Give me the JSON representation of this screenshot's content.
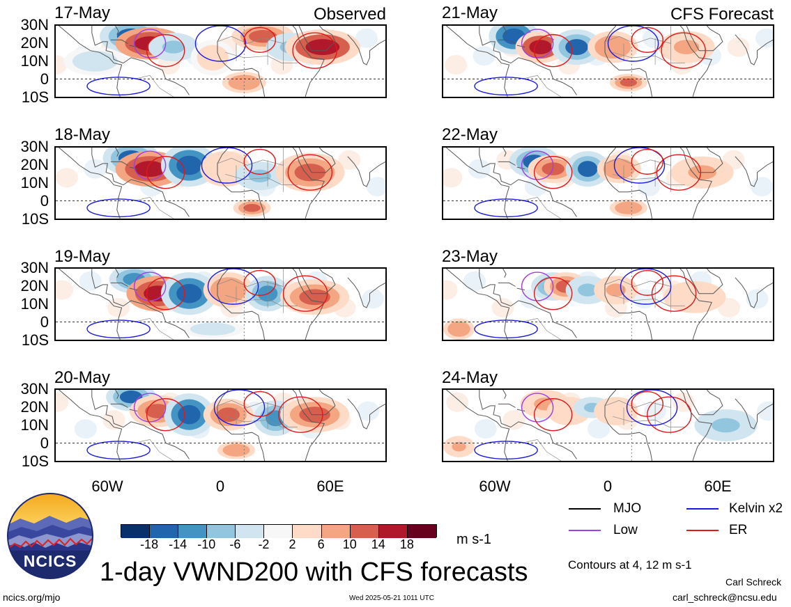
{
  "panels_left": [
    {
      "date": "17-May",
      "tag": "Observed"
    },
    {
      "date": "18-May",
      "tag": ""
    },
    {
      "date": "19-May",
      "tag": ""
    },
    {
      "date": "20-May",
      "tag": ""
    }
  ],
  "panels_right": [
    {
      "date": "21-May",
      "tag": "CFS Forecast"
    },
    {
      "date": "22-May",
      "tag": ""
    },
    {
      "date": "23-May",
      "tag": ""
    },
    {
      "date": "24-May",
      "tag": ""
    }
  ],
  "lat_labels": [
    "30N",
    "20N",
    "10N",
    "0",
    "10S"
  ],
  "lon_labels": [
    "60W",
    "0",
    "60E"
  ],
  "legend": {
    "items": [
      {
        "label": "MJO",
        "color": "#000000"
      },
      {
        "label": "Kelvin x2",
        "color": "#1a1adc"
      },
      {
        "label": "Low",
        "color": "#a040e0"
      },
      {
        "label": "ER",
        "color": "#e01818"
      }
    ],
    "contours_note": "Contours at 4, 12 m s-1"
  },
  "colorbar": {
    "ticks": [
      "-18",
      "-14",
      "-10",
      "-6",
      "-2",
      "2",
      "6",
      "10",
      "14",
      "18"
    ],
    "colors": [
      "#08306b",
      "#2166ac",
      "#4393c3",
      "#92c5de",
      "#d1e5f0",
      "#f7f7f7",
      "#fddbc7",
      "#f4a582",
      "#d6604d",
      "#b2182b",
      "#67001f"
    ],
    "unit": "m s-1"
  },
  "title": "1-day VWND200 with CFS forecasts",
  "logo_text": "NCICS",
  "url": "ncics.org/mjo",
  "timestamp": "Wed 2025-05-21 1011 UTC",
  "author": "Carl Schreck",
  "email": "carl_schreck@ncsu.edu"
}
